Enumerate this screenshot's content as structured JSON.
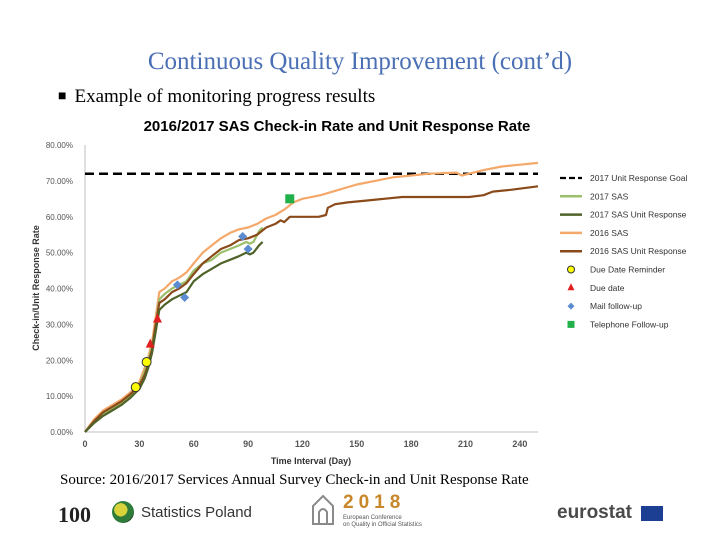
{
  "slide": {
    "title": "Continuous Quality Improvement (cont’d)",
    "bullet": "Example of monitoring progress results",
    "source": "Source: 2016/2017 Services Annual Survey Check-in and Unit Response Rate"
  },
  "footer": {
    "logo_100": "100",
    "logo_statistics_poland": "Statistics Poland",
    "conf_year": "2018",
    "conf_sub_1": "European Conference",
    "conf_sub_2": "on Quality in Official Statistics",
    "logo_eurostat": "eurostat"
  },
  "colors": {
    "title": "#4a6fb5",
    "sas_2017": "#9bbf6a",
    "unit_2017": "#4f6228",
    "sas_2016": "#f4a86a",
    "unit_2016": "#8a4a1a",
    "goal": "#000000",
    "reminder": "#ffff00",
    "due_date": "#e02020",
    "mail": "#5b8bd0",
    "phone": "#22b04a"
  },
  "chart_data": {
    "type": "line",
    "title": "2016/2017 SAS Check-in Rate and Unit Response Rate",
    "xlabel": "Time Interval (Day)",
    "ylabel": "Check-in/Unit Response Rate",
    "xlim": [
      0,
      250
    ],
    "ylim": [
      0,
      80
    ],
    "x_ticks": [
      0,
      30,
      60,
      90,
      120,
      150,
      180,
      210,
      240
    ],
    "y_ticks": [
      "0.00%",
      "10.00%",
      "20.00%",
      "30.00%",
      "40.00%",
      "50.00%",
      "60.00%",
      "70.00%",
      "80.00%"
    ],
    "grid": false,
    "legend_position": "right",
    "goal": {
      "name": "2017 Unit Response Goal",
      "value": 72
    },
    "series": [
      {
        "name": "2017 SAS",
        "color": "#9bbf6a",
        "points": [
          [
            0,
            0
          ],
          [
            5,
            3
          ],
          [
            10,
            5
          ],
          [
            15,
            6.5
          ],
          [
            20,
            8
          ],
          [
            25,
            10
          ],
          [
            30,
            13
          ],
          [
            33,
            17
          ],
          [
            35,
            20
          ],
          [
            37,
            24
          ],
          [
            39,
            30
          ],
          [
            41,
            37
          ],
          [
            44,
            38.5
          ],
          [
            48,
            40
          ],
          [
            52,
            41
          ],
          [
            56,
            42
          ],
          [
            60,
            45
          ],
          [
            65,
            47
          ],
          [
            70,
            48
          ],
          [
            75,
            50
          ],
          [
            80,
            51
          ],
          [
            85,
            52
          ],
          [
            89,
            53
          ],
          [
            91,
            52.5
          ],
          [
            93,
            53
          ],
          [
            96,
            56
          ],
          [
            98,
            57
          ]
        ]
      },
      {
        "name": "2017 SAS Unit Response",
        "color": "#4f6228",
        "points": [
          [
            0,
            0
          ],
          [
            5,
            2.5
          ],
          [
            10,
            4.5
          ],
          [
            15,
            6
          ],
          [
            20,
            7.5
          ],
          [
            25,
            9.5
          ],
          [
            30,
            12
          ],
          [
            33,
            15
          ],
          [
            35,
            18
          ],
          [
            37,
            22
          ],
          [
            39,
            28
          ],
          [
            41,
            34
          ],
          [
            44,
            35.5
          ],
          [
            48,
            37
          ],
          [
            52,
            38
          ],
          [
            56,
            39
          ],
          [
            60,
            42
          ],
          [
            65,
            44
          ],
          [
            70,
            45.5
          ],
          [
            75,
            47
          ],
          [
            80,
            48
          ],
          [
            85,
            49
          ],
          [
            89,
            50
          ],
          [
            91,
            49.5
          ],
          [
            93,
            50
          ],
          [
            96,
            52
          ],
          [
            98,
            53
          ]
        ]
      },
      {
        "name": "2016 SAS",
        "color": "#f4a86a",
        "points": [
          [
            0,
            0
          ],
          [
            5,
            3.5
          ],
          [
            10,
            6
          ],
          [
            15,
            7.5
          ],
          [
            20,
            9
          ],
          [
            25,
            11
          ],
          [
            30,
            14
          ],
          [
            33,
            18
          ],
          [
            35,
            21
          ],
          [
            37,
            25
          ],
          [
            39,
            32
          ],
          [
            41,
            39
          ],
          [
            44,
            40
          ],
          [
            48,
            42
          ],
          [
            52,
            43
          ],
          [
            56,
            44.5
          ],
          [
            60,
            47
          ],
          [
            65,
            50
          ],
          [
            70,
            52
          ],
          [
            75,
            54
          ],
          [
            80,
            55.5
          ],
          [
            85,
            56.5
          ],
          [
            90,
            57
          ],
          [
            95,
            58
          ],
          [
            100,
            59.5
          ],
          [
            105,
            60.5
          ],
          [
            110,
            62
          ],
          [
            115,
            64
          ],
          [
            120,
            65
          ],
          [
            130,
            66
          ],
          [
            140,
            67.5
          ],
          [
            150,
            69
          ],
          [
            160,
            70
          ],
          [
            170,
            71
          ],
          [
            180,
            71.5
          ],
          [
            190,
            72
          ],
          [
            205,
            72.3
          ],
          [
            208,
            71.5
          ],
          [
            212,
            72
          ],
          [
            220,
            73
          ],
          [
            230,
            74
          ],
          [
            240,
            74.5
          ],
          [
            250,
            75
          ]
        ]
      },
      {
        "name": "2016 SAS Unit Response",
        "color": "#8a4a1a",
        "points": [
          [
            0,
            0
          ],
          [
            5,
            3
          ],
          [
            10,
            5.5
          ],
          [
            15,
            7
          ],
          [
            20,
            8.5
          ],
          [
            25,
            10.5
          ],
          [
            30,
            13
          ],
          [
            33,
            16
          ],
          [
            35,
            19
          ],
          [
            37,
            23
          ],
          [
            39,
            30
          ],
          [
            41,
            36
          ],
          [
            44,
            37
          ],
          [
            48,
            39
          ],
          [
            52,
            40
          ],
          [
            56,
            41.5
          ],
          [
            60,
            44
          ],
          [
            65,
            47
          ],
          [
            70,
            49
          ],
          [
            75,
            51
          ],
          [
            80,
            52
          ],
          [
            85,
            53.5
          ],
          [
            90,
            54
          ],
          [
            95,
            55
          ],
          [
            100,
            57
          ],
          [
            105,
            58
          ],
          [
            108,
            59
          ],
          [
            110,
            58.5
          ],
          [
            113,
            60
          ],
          [
            118,
            60
          ],
          [
            129,
            60
          ],
          [
            133,
            60.5
          ],
          [
            134,
            62.5
          ],
          [
            138,
            63.5
          ],
          [
            145,
            64
          ],
          [
            155,
            64.5
          ],
          [
            165,
            65
          ],
          [
            175,
            65.5
          ],
          [
            190,
            65.5
          ],
          [
            205,
            65.5
          ],
          [
            212,
            65.5
          ],
          [
            220,
            66
          ],
          [
            225,
            67
          ],
          [
            235,
            67.5
          ],
          [
            250,
            68.5
          ]
        ]
      }
    ],
    "markers": [
      {
        "name": "Due Date Reminder",
        "symbol": "circle",
        "color": "#ffff00",
        "points": [
          [
            28,
            12.5
          ],
          [
            34,
            19.5
          ]
        ]
      },
      {
        "name": "Due date",
        "symbol": "triangle",
        "color": "#e02020",
        "points": [
          [
            36,
            24.5
          ],
          [
            40,
            31.5
          ]
        ]
      },
      {
        "name": "Mail follow-up",
        "symbol": "diamond",
        "color": "#5b8bd0",
        "points": [
          [
            51,
            41
          ],
          [
            55,
            37.5
          ],
          [
            87,
            54.5
          ],
          [
            90,
            51
          ]
        ]
      },
      {
        "name": "Telephone Follow-up",
        "symbol": "square",
        "color": "#22b04a",
        "points": [
          [
            113,
            65
          ]
        ]
      }
    ],
    "legend": [
      "2017 Unit Response Goal",
      "2017 SAS",
      "2017 SAS Unit Response",
      "2016 SAS",
      "2016 SAS Unit Response",
      "Due Date Reminder",
      "Due date",
      "Mail follow-up",
      "Telephone Follow-up"
    ]
  }
}
